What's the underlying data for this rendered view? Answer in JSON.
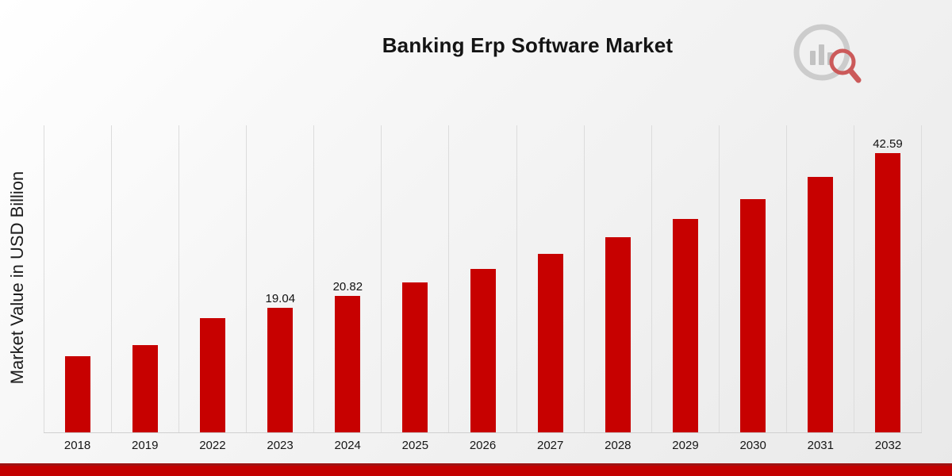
{
  "page": {
    "title": "Banking Erp Software Market"
  },
  "chart_data": {
    "type": "bar",
    "title": "Banking Erp Software Market",
    "xlabel": "",
    "ylabel": "Market Value in USD Billion",
    "categories": [
      "2018",
      "2019",
      "2022",
      "2023",
      "2024",
      "2025",
      "2026",
      "2027",
      "2028",
      "2029",
      "2030",
      "2031",
      "2032"
    ],
    "values": [
      11.6,
      13.3,
      17.4,
      19.04,
      20.82,
      22.8,
      24.9,
      27.2,
      29.8,
      32.5,
      35.6,
      38.9,
      42.59
    ],
    "data_labels": [
      {
        "category": "2023",
        "text": "19.04"
      },
      {
        "category": "2024",
        "text": "20.82"
      },
      {
        "category": "2032",
        "text": "42.59"
      }
    ],
    "ylim": [
      0,
      46.8
    ],
    "grid": "vertical-only",
    "legend": "none",
    "bar_color": "#c70100"
  },
  "branding": {
    "logo_icon": "bar-chart-magnifier-logo-icon",
    "accent_red": "#c70100",
    "band_top_color": "#9e1313",
    "band_color": "#c30101"
  }
}
